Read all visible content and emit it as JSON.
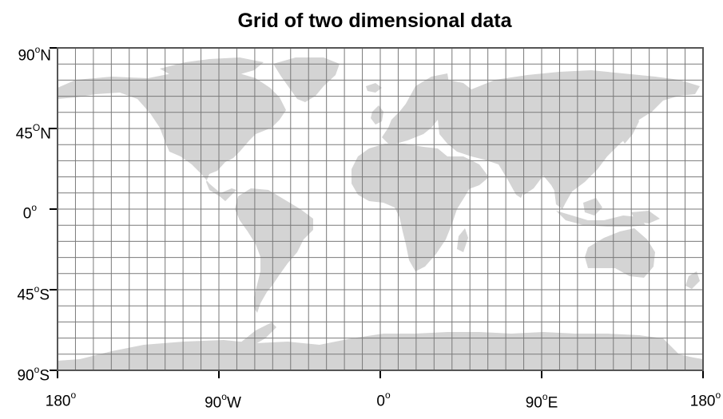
{
  "title": "Grid of two dimensional data",
  "y_labels": [
    {
      "deg": "90",
      "sup": "o",
      "suffix": "N"
    },
    {
      "deg": "45",
      "sup": "O",
      "suffix": "N"
    },
    {
      "deg": "0",
      "sup": "o",
      "suffix": ""
    },
    {
      "deg": "45",
      "sup": "o",
      "suffix": "S"
    },
    {
      "deg": "90",
      "sup": "o",
      "suffix": "S"
    }
  ],
  "x_labels": [
    {
      "deg": "180",
      "sup": "o",
      "suffix": ""
    },
    {
      "deg": "90",
      "sup": "o",
      "suffix": "W"
    },
    {
      "deg": "0",
      "sup": "o",
      "suffix": ""
    },
    {
      "deg": "90",
      "sup": "o",
      "suffix": "E"
    },
    {
      "deg": "180",
      "sup": "o",
      "suffix": ""
    }
  ],
  "grid": {
    "columns": 36,
    "rows": 20
  },
  "colors": {
    "land": "#d4d4d4",
    "grid": "#7a7a7a",
    "frame": "#555555",
    "text": "#000000"
  }
}
